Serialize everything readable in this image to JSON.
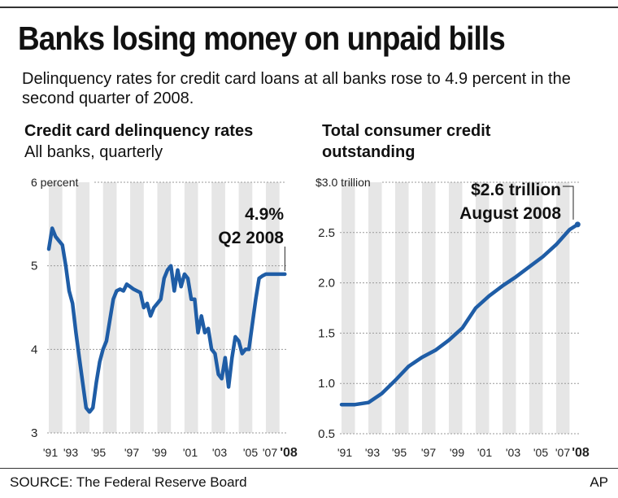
{
  "header": {
    "title": "Banks losing money on unpaid bills",
    "subtitle": "Delinquency rates for credit card loans at all banks rose to 4.9 percent in the second quarter of 2008."
  },
  "footer": {
    "source": "SOURCE: The Federal Reserve Board",
    "credit": "AP"
  },
  "colors": {
    "line": "#1f5da6",
    "band": "#e6e6e6",
    "grid": "#9a9a9a"
  },
  "chart_data": [
    {
      "type": "line",
      "title": "Credit card delinquency rates",
      "subtitle": "All banks, quarterly",
      "xlabel": "",
      "ylabel": "",
      "xlim": [
        1991,
        2008.5
      ],
      "ylim": [
        3,
        6
      ],
      "y_ticks": [
        3,
        4,
        5,
        6
      ],
      "y_tick_labels": [
        "3",
        "4",
        "5",
        "6 percent"
      ],
      "x_tick_labels": [
        "'91",
        "'93",
        "'95",
        "'97",
        "'99",
        "'01",
        "'03",
        "'05",
        "'07",
        "'08"
      ],
      "x_tick_values": [
        1991,
        1993,
        1995,
        1997,
        1999,
        2001,
        2003,
        2005,
        2007,
        2008.3
      ],
      "annotation": {
        "lines": [
          "4.9%",
          "Q2 2008"
        ],
        "x": 2008.4,
        "y": 4.9
      },
      "series": [
        {
          "x": [
            1991.0,
            1991.25,
            1991.5,
            1991.75,
            1992.0,
            1992.25,
            1992.5,
            1992.75,
            1993.0,
            1993.25,
            1993.5,
            1993.75,
            1994.0,
            1994.25,
            1994.5,
            1994.75,
            1995.0,
            1995.25,
            1995.5,
            1995.75,
            1996.0,
            1996.25,
            1996.5,
            1996.75,
            1997.0,
            1997.25,
            1997.5,
            1997.75,
            1998.0,
            1998.25,
            1998.5,
            1998.75,
            1999.0,
            1999.25,
            1999.5,
            1999.75,
            2000.0,
            2000.25,
            2000.5,
            2000.75,
            2001.0,
            2001.25,
            2001.5,
            2001.75,
            2002.0,
            2002.25,
            2002.5,
            2002.75,
            2003.0,
            2003.25,
            2003.5,
            2003.75,
            2004.0,
            2004.25,
            2004.5,
            2004.75,
            2005.0,
            2005.25,
            2005.5,
            2005.75,
            2006.0,
            2006.25,
            2006.5,
            2006.75,
            2007.0,
            2007.25,
            2007.5,
            2007.75,
            2008.0,
            2008.25,
            2008.4
          ],
          "values": [
            5.2,
            5.45,
            5.35,
            5.3,
            5.25,
            5.0,
            4.7,
            4.55,
            4.2,
            3.9,
            3.6,
            3.3,
            3.25,
            3.3,
            3.6,
            3.85,
            4.0,
            4.1,
            4.35,
            4.6,
            4.7,
            4.72,
            4.7,
            4.78,
            4.75,
            4.72,
            4.7,
            4.68,
            4.5,
            4.55,
            4.4,
            4.5,
            4.55,
            4.6,
            4.85,
            4.95,
            5.0,
            4.7,
            4.95,
            4.75,
            4.9,
            4.85,
            4.6,
            4.6,
            4.2,
            4.4,
            4.2,
            4.25,
            4.0,
            3.95,
            3.7,
            3.65,
            3.9,
            3.55,
            3.9,
            4.15,
            4.1,
            3.95,
            4.0,
            4.0,
            4.3,
            4.6,
            4.85,
            4.88,
            4.9,
            4.9,
            4.9,
            4.9,
            4.9,
            4.9,
            4.9
          ]
        }
      ]
    },
    {
      "type": "line",
      "title": "Total consumer credit outstanding",
      "xlabel": "",
      "ylabel": "",
      "xlim": [
        1991,
        2008.7
      ],
      "ylim": [
        0.5,
        3.0
      ],
      "y_ticks": [
        0.5,
        1.0,
        1.5,
        2.0,
        2.5,
        3.0
      ],
      "y_tick_labels": [
        "0.5",
        "1.0",
        "1.5",
        "2.0",
        "2.5",
        "$3.0 trillion"
      ],
      "x_tick_labels": [
        "'91",
        "'93",
        "'95",
        "'97",
        "'99",
        "'01",
        "'03",
        "'05",
        "'07",
        "'08"
      ],
      "x_tick_values": [
        1991,
        1993,
        1995,
        1997,
        1999,
        2001,
        2003,
        2005,
        2007,
        2008.3
      ],
      "annotation": {
        "lines": [
          "$2.6 trillion",
          "August 2008"
        ],
        "x": 2008.6,
        "y": 2.58
      },
      "series": [
        {
          "x": [
            1991.0,
            1992.0,
            1993.0,
            1994.0,
            1995.0,
            1996.0,
            1997.0,
            1998.0,
            1999.0,
            2000.0,
            2001.0,
            2002.0,
            2003.0,
            2004.0,
            2005.0,
            2006.0,
            2007.0,
            2008.0,
            2008.6
          ],
          "values": [
            0.79,
            0.79,
            0.81,
            0.9,
            1.03,
            1.17,
            1.26,
            1.33,
            1.43,
            1.55,
            1.75,
            1.87,
            1.97,
            2.06,
            2.16,
            2.26,
            2.38,
            2.53,
            2.58
          ]
        }
      ]
    }
  ]
}
